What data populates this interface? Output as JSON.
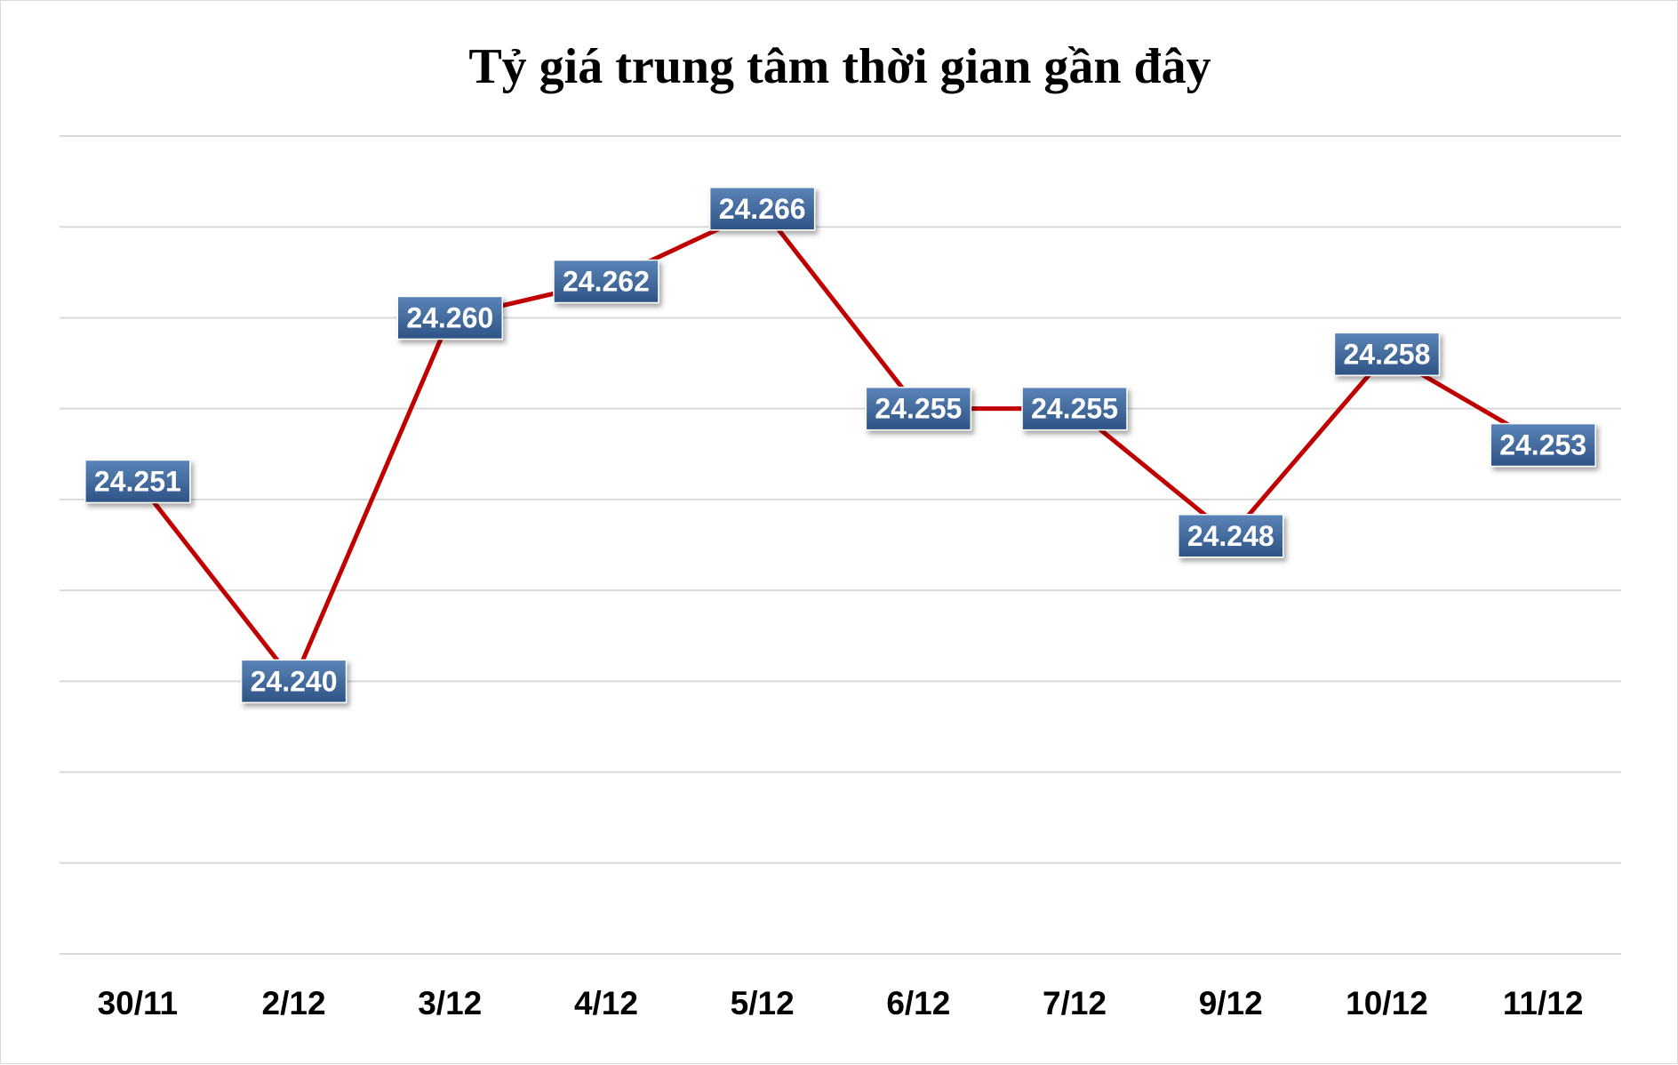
{
  "chart_data": {
    "type": "line",
    "title": "Tỷ giá trung tâm thời gian gần đây",
    "xlabel": "",
    "ylabel": "",
    "categories": [
      "30/11",
      "2/12",
      "3/12",
      "4/12",
      "5/12",
      "6/12",
      "7/12",
      "9/12",
      "10/12",
      "11/12"
    ],
    "values": [
      24251,
      24240,
      24260,
      24262,
      24266,
      24255,
      24255,
      24248,
      24258,
      24253
    ],
    "data_labels": [
      "24.251",
      "24.240",
      "24.260",
      "24.262",
      "24.266",
      "24.255",
      "24.255",
      "24.248",
      "24.258",
      "24.253"
    ],
    "ylim": [
      24225,
      24270
    ],
    "ytick_step": 5,
    "y_axis_labels_shown": false,
    "grid": true,
    "legend": "none",
    "colors": {
      "line": "#C00000",
      "label_box_top": "#5B84B8",
      "label_box_bottom": "#2E5385",
      "gridline": "#d9d9d9"
    }
  }
}
